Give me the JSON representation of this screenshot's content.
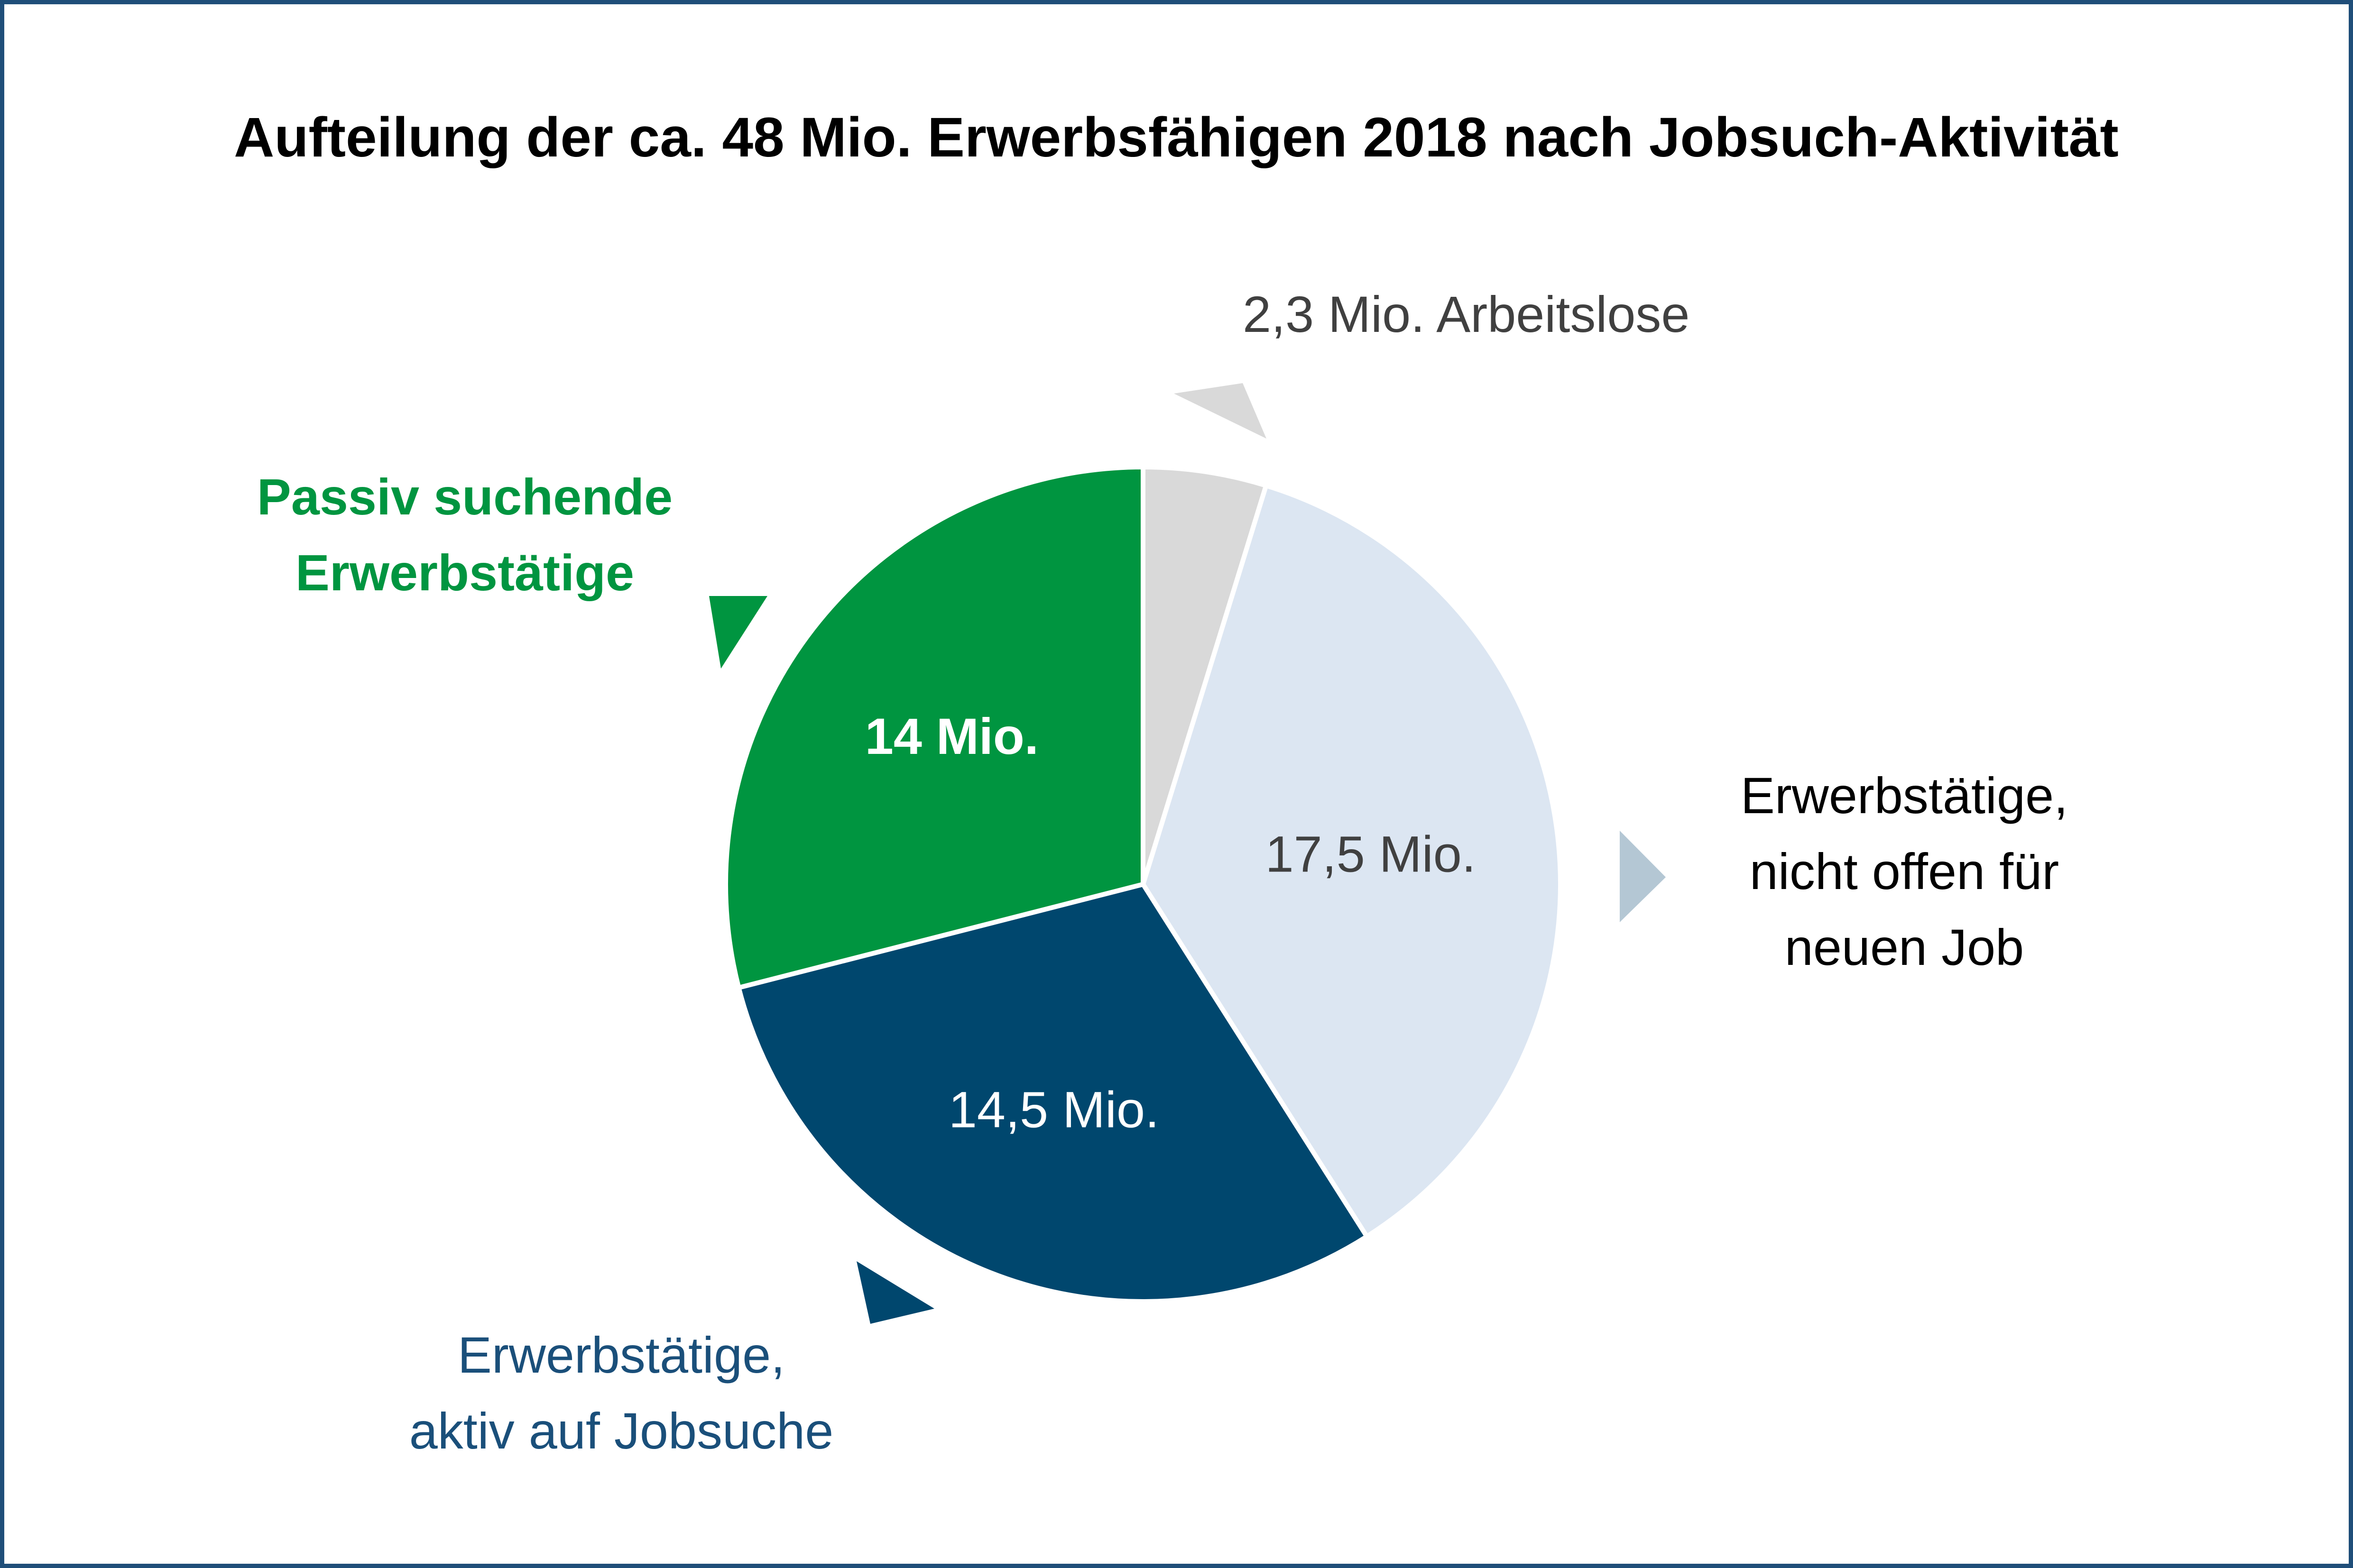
{
  "chart_data": {
    "type": "pie",
    "title": "Aufteilung der ca. 48 Mio. Erwerbsfähigen 2018 nach Jobsuch-Aktivität",
    "start": "12 o'clock",
    "direction": "clockwise",
    "categories": [
      "Arbeitslose",
      "Erwerbstätige, nicht offen für neuen Job",
      "Erwerbstätige, aktiv auf Jobsuche",
      "Passiv suchende Erwerbstätige"
    ],
    "values": [
      2.3,
      17.5,
      14.5,
      14
    ],
    "unit": "Mio.",
    "colors": [
      "#d9d9d9",
      "#dce6f2",
      "#00476e",
      "#009540"
    ],
    "slice_labels": [
      "",
      "17,5 Mio.",
      "14,5 Mio.",
      "14 Mio."
    ],
    "slice_label_colors": [
      "#404040",
      "#404040",
      "#ffffff",
      "#ffffff"
    ],
    "callouts": [
      {
        "lines": [
          "2,3 Mio. Arbeitslose"
        ],
        "color": "#404040",
        "bold": false
      },
      {
        "lines": [
          "Erwerbstätige,",
          "nicht offen für",
          "neuen Job"
        ],
        "color": "#000000",
        "bold": false
      },
      {
        "lines": [
          "Erwerbstätige,",
          "aktiv auf Jobsuche"
        ],
        "color": "#1a4f7a",
        "bold": false
      },
      {
        "lines": [
          "Passiv suchende",
          "Erwerbstätige"
        ],
        "color": "#009540",
        "bold": true
      }
    ],
    "arrow_colors": [
      "#d9d9d9",
      "#b4c7d4",
      "#00476e",
      "#009540"
    ]
  }
}
